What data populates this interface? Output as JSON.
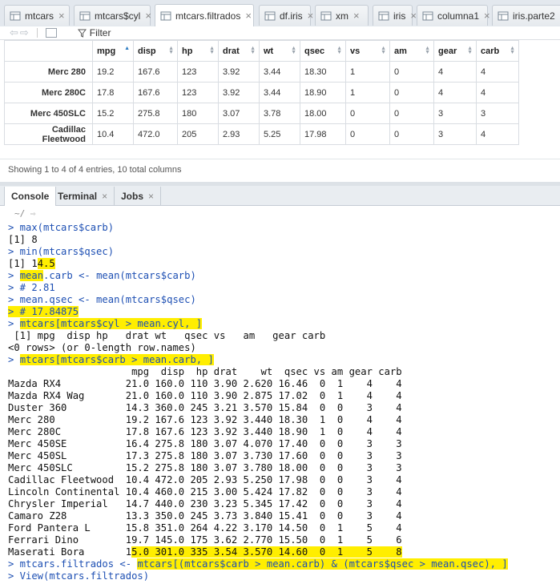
{
  "editor_tabs": [
    {
      "label": "mtcars",
      "icon": "table-icon",
      "active": false
    },
    {
      "label": "mtcars$cyl",
      "icon": "table-icon",
      "active": false
    },
    {
      "label": "mtcars.filtrados",
      "icon": "table-icon",
      "active": true
    },
    {
      "label": "df.iris",
      "icon": "table-icon",
      "active": false
    },
    {
      "label": "xm",
      "icon": "table-icon",
      "active": false
    },
    {
      "label": "iris",
      "icon": "table-icon",
      "active": false
    },
    {
      "label": "columna1",
      "icon": "table-icon",
      "active": false
    },
    {
      "label": "iris.parte2",
      "icon": "table-icon",
      "active": false
    }
  ],
  "toolbar": {
    "filter_label": "Filter"
  },
  "grid": {
    "columns": [
      "mpg",
      "disp",
      "hp",
      "drat",
      "wt",
      "qsec",
      "vs",
      "am",
      "gear",
      "carb"
    ],
    "rows": [
      {
        "name": "Merc 280",
        "values": [
          "19.2",
          "167.6",
          "123",
          "3.92",
          "3.44",
          "18.30",
          "1",
          "0",
          "4",
          "4"
        ]
      },
      {
        "name": "Merc 280C",
        "values": [
          "17.8",
          "167.6",
          "123",
          "3.92",
          "3.44",
          "18.90",
          "1",
          "0",
          "4",
          "4"
        ]
      },
      {
        "name": "Merc 450SLC",
        "values": [
          "15.2",
          "275.8",
          "180",
          "3.07",
          "3.78",
          "18.00",
          "0",
          "0",
          "3",
          "3"
        ]
      },
      {
        "name": "Cadillac Fleetwood",
        "values": [
          "10.4",
          "472.0",
          "205",
          "2.93",
          "5.25",
          "17.98",
          "0",
          "0",
          "3",
          "4"
        ]
      }
    ],
    "status": "Showing 1 to 4 of 4 entries, 10 total columns"
  },
  "console_tabs": [
    {
      "label": "Console",
      "active": true,
      "closable": false
    },
    {
      "label": "Terminal",
      "active": false,
      "closable": true
    },
    {
      "label": "Jobs",
      "active": false,
      "closable": true
    }
  ],
  "console_path": "~/",
  "console_lines": [
    {
      "t": "cmd",
      "s": [
        {
          "x": "> max(mtcars$carb)"
        }
      ]
    },
    {
      "t": "out",
      "s": [
        {
          "x": "[1] 8"
        }
      ]
    },
    {
      "t": "cmd",
      "s": [
        {
          "x": "> min(mtcars$qsec)"
        }
      ]
    },
    {
      "t": "out",
      "s": [
        {
          "x": "[1] 1"
        },
        {
          "x": "4.5",
          "h": 1
        }
      ]
    },
    {
      "t": "cmd",
      "s": [
        {
          "x": "> "
        },
        {
          "x": "mean",
          "h": 1
        },
        {
          "x": ".carb <- mean(mtcars$carb)"
        }
      ]
    },
    {
      "t": "cmd",
      "s": [
        {
          "x": "> # 2.81"
        }
      ]
    },
    {
      "t": "cmd",
      "s": [
        {
          "x": "> mean.qsec <- mean(mtcars$qsec)"
        }
      ]
    },
    {
      "t": "cmd",
      "s": [
        {
          "x": "> # 17.84875",
          "h": 1
        }
      ]
    },
    {
      "t": "cmd",
      "s": [
        {
          "x": "> "
        },
        {
          "x": "mtcars[mtcars$cyl > mean.cyl, ]",
          "h": 1
        }
      ]
    },
    {
      "t": "out",
      "s": [
        {
          "x": " [1] mpg  disp hp   drat wt   qsec vs   am   gear carb"
        }
      ]
    },
    {
      "t": "out",
      "s": [
        {
          "x": "<0 rows> (or 0-length row.names)"
        }
      ]
    },
    {
      "t": "cmd",
      "s": [
        {
          "x": "> "
        },
        {
          "x": "mtcars[mtcars$carb > mean.carb, ]",
          "h": 1
        }
      ]
    },
    {
      "t": "out",
      "s": [
        {
          "x": "                     mpg  disp  hp drat    wt  qsec vs am gear carb"
        }
      ]
    },
    {
      "t": "out",
      "s": [
        {
          "x": "Mazda RX4           21.0 160.0 110 3.90 2.620 16.46  0  1    4    4"
        }
      ]
    },
    {
      "t": "out",
      "s": [
        {
          "x": "Mazda RX4 Wag       21.0 160.0 110 3.90 2.875 17.02  0  1    4    4"
        }
      ]
    },
    {
      "t": "out",
      "s": [
        {
          "x": "Duster 360          14.3 360.0 245 3.21 3.570 15.84  0  0    3    4"
        }
      ]
    },
    {
      "t": "out",
      "s": [
        {
          "x": "Merc 280            19.2 167.6 123 3.92 3.440 18.30  1  0    4    4"
        }
      ]
    },
    {
      "t": "out",
      "s": [
        {
          "x": "Merc 280C           17.8 167.6 123 3.92 3.440 18.90  1  0    4    4"
        }
      ]
    },
    {
      "t": "out",
      "s": [
        {
          "x": "Merc 450SE          16.4 275.8 180 3.07 4.070 17.40  0  0    3    3"
        }
      ]
    },
    {
      "t": "out",
      "s": [
        {
          "x": "Merc 450SL          17.3 275.8 180 3.07 3.730 17.60  0  0    3    3"
        }
      ]
    },
    {
      "t": "out",
      "s": [
        {
          "x": "Merc 450SLC         15.2 275.8 180 3.07 3.780 18.00  0  0    3    3"
        }
      ]
    },
    {
      "t": "out",
      "s": [
        {
          "x": "Cadillac Fleetwood  10.4 472.0 205 2.93 5.250 17.98  0  0    3    4"
        }
      ]
    },
    {
      "t": "out",
      "s": [
        {
          "x": "Lincoln Continental 10.4 460.0 215 3.00 5.424 17.82  0  0    3    4"
        }
      ]
    },
    {
      "t": "out",
      "s": [
        {
          "x": "Chrysler Imperial   14.7 440.0 230 3.23 5.345 17.42  0  0    3    4"
        }
      ]
    },
    {
      "t": "out",
      "s": [
        {
          "x": "Camaro Z28          13.3 350.0 245 3.73 3.840 15.41  0  0    3    4"
        }
      ]
    },
    {
      "t": "out",
      "s": [
        {
          "x": "Ford Pantera L      15.8 351.0 264 4.22 3.170 14.50  0  1    5    4"
        }
      ]
    },
    {
      "t": "out",
      "s": [
        {
          "x": "Ferrari Dino        19.7 145.0 175 3.62 2.770 15.50  0  1    5    6"
        }
      ]
    },
    {
      "t": "out",
      "s": [
        {
          "x": "Maserati Bora       1"
        },
        {
          "x": "5.0 301.0 335 3.54 3.570 14.60  0  1    5    8",
          "h": 2
        }
      ]
    },
    {
      "t": "cmd",
      "s": [
        {
          "x": "> mtcars.filtrados <- "
        },
        {
          "x": "mtcars[(mtcars$carb > mean.carb) & (mtcars$qsec > mean.qsec), ]",
          "h": 1
        }
      ]
    },
    {
      "t": "cmd",
      "s": [
        {
          "x": "> View(mtcars.filtrados)"
        }
      ]
    }
  ]
}
